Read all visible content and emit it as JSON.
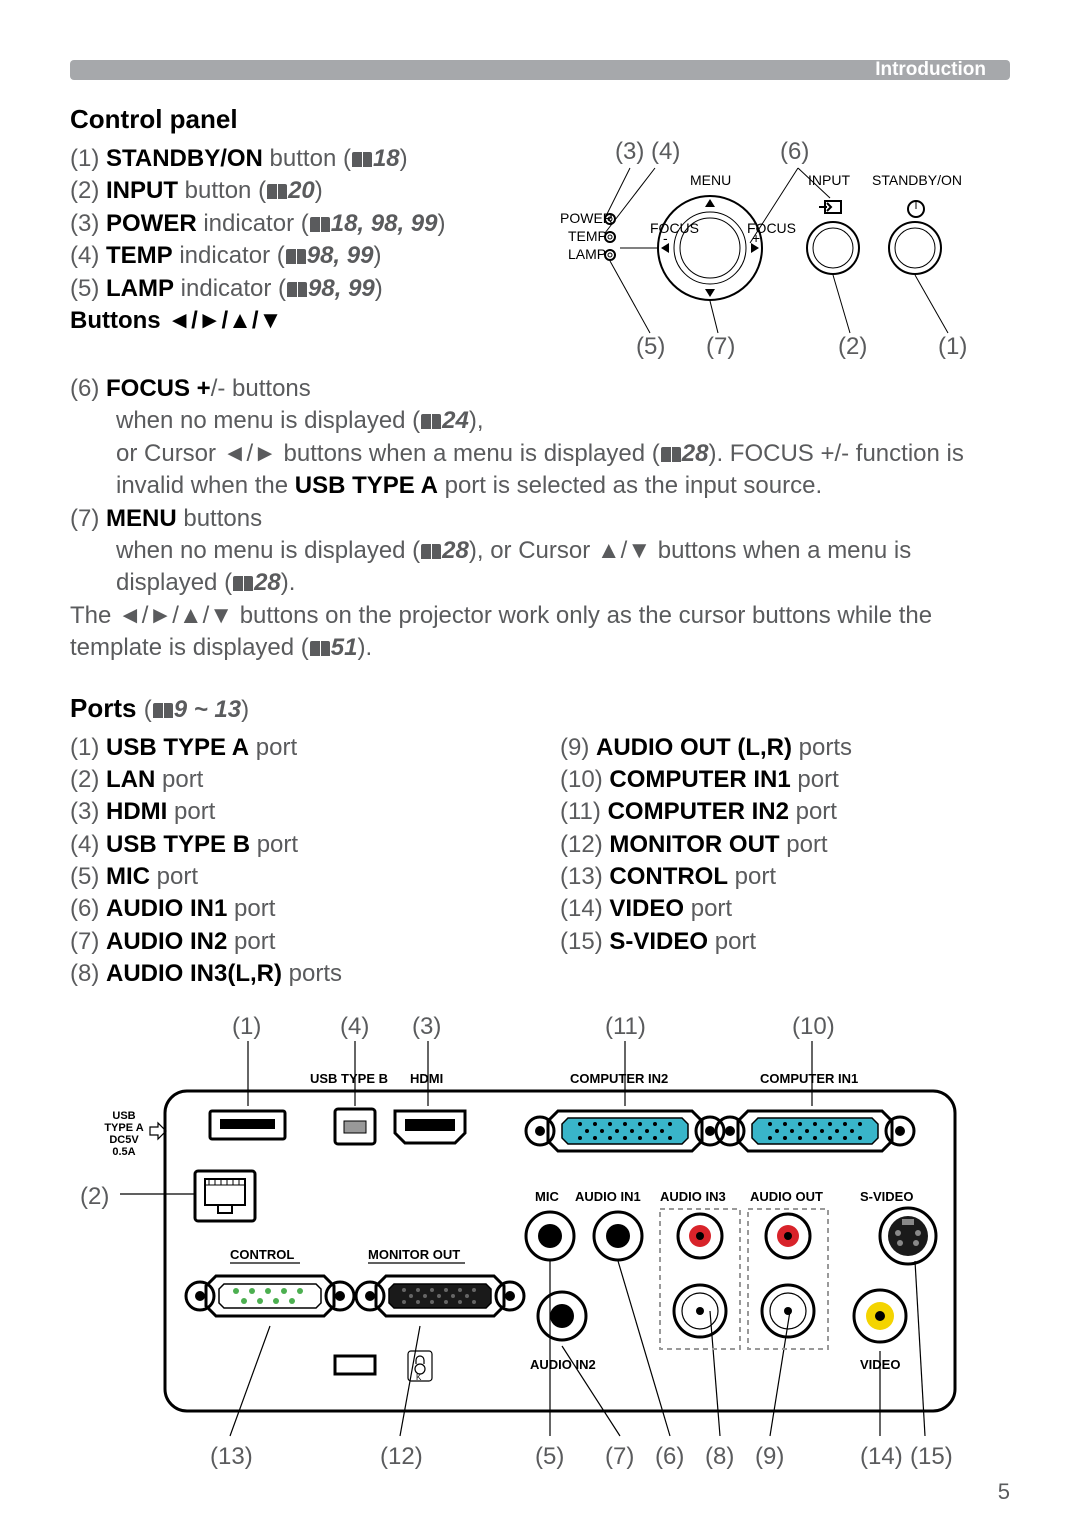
{
  "header": {
    "label": "Introduction"
  },
  "page_number": "5",
  "control_panel": {
    "title": "Control panel",
    "items": [
      {
        "num": "(1)",
        "bold": "STANDBY/ON",
        "rest": " button (",
        "ref": "18",
        "after": ")"
      },
      {
        "num": "(2)",
        "bold": "INPUT",
        "rest": " button (",
        "ref": "20",
        "after": ")"
      },
      {
        "num": "(3)",
        "bold": "POWER",
        "rest": " indicator (",
        "ref": "18, 98, 99",
        "after": ")"
      },
      {
        "num": "(4)",
        "bold": "TEMP",
        "rest": " indicator (",
        "ref": "98, 99",
        "after": ")"
      },
      {
        "num": "(5)",
        "bold": "LAMP",
        "rest": " indicator (",
        "ref": "98, 99",
        "after": ")"
      }
    ],
    "buttons_heading": "Buttons ◄/►/▲/▼",
    "focus": {
      "num": "(6)",
      "bold": "FOCUS +",
      "slash_minus": "/-",
      "rest": " buttons",
      "line2a": "when no menu is displayed (",
      "ref1": "24",
      "line2b": "),",
      "line3a": "or Cursor ◄/► buttons when a menu is displayed (",
      "ref2": "28",
      "line3b": "). FOCUS +/- function is invalid when the ",
      "bold2": "USB TYPE A",
      "line3c": " port is selected as the input source."
    },
    "menu": {
      "num": "(7)",
      "bold": "MENU",
      "rest": " buttons",
      "line2a": "when no menu is displayed (",
      "ref1": "28",
      "line2b": "), or Cursor ▲/▼ buttons when a menu is displayed (",
      "ref2": "28",
      "line2c": ")."
    },
    "footer": {
      "a": "The ◄/►/▲/▼ buttons on the projector work only as the cursor buttons while the template is displayed (",
      "ref": "51",
      "b": ")."
    },
    "diagram": {
      "top_callouts": {
        "c3": "(3)",
        "c4": "(4)",
        "c6": "(6)"
      },
      "bottom_callouts": {
        "c5": "(5)",
        "c7": "(7)",
        "c2": "(2)",
        "c1": "(1)"
      },
      "labels": {
        "menu": "MENU",
        "input": "INPUT",
        "standby": "STANDBY/ON",
        "power": "POWER",
        "temp": "TEMP",
        "lamp": "LAMP",
        "focus_minus": "FOCUS\n-",
        "focus_plus": "FOCUS\n+"
      }
    }
  },
  "ports": {
    "title_a": "Ports",
    "title_b": "(",
    "title_ref": "9 ~ 13",
    "title_c": ")",
    "left": [
      {
        "num": "(1)",
        "bold": "USB TYPE A",
        "rest": " port"
      },
      {
        "num": "(2)",
        "bold": "LAN",
        "rest": "  port"
      },
      {
        "num": "(3)",
        "bold": "HDMI",
        "rest": " port"
      },
      {
        "num": "(4)",
        "bold": "USB TYPE B",
        "rest": " port"
      },
      {
        "num": "(5)",
        "bold": "MIC",
        "rest": " port"
      },
      {
        "num": "(6)",
        "bold": "AUDIO IN1",
        "rest": " port"
      },
      {
        "num": "(7)",
        "bold": "AUDIO IN2",
        "rest": " port"
      },
      {
        "num": "(8)",
        "bold": "AUDIO IN3(L,R)",
        "rest": "  ports"
      }
    ],
    "right": [
      {
        "num": "(9)",
        "bold": "AUDIO OUT (L,R)",
        "rest": " ports"
      },
      {
        "num": "(10)",
        "bold": "COMPUTER IN1",
        "rest": " port"
      },
      {
        "num": "(11)",
        "bold": "COMPUTER IN2",
        "rest": " port"
      },
      {
        "num": "(12)",
        "bold": "MONITOR OUT",
        "rest": " port"
      },
      {
        "num": "(13)",
        "bold": "CONTROL",
        "rest": " port"
      },
      {
        "num": "(14)",
        "bold": "VIDEO",
        "rest": " port"
      },
      {
        "num": "(15)",
        "bold": "S-VIDEO",
        "rest": " port"
      }
    ],
    "diagram": {
      "top": {
        "c1": "(1)",
        "c4": "(4)",
        "c3": "(3)",
        "c11": "(11)",
        "c10": "(10)"
      },
      "left": {
        "c2": "(2)"
      },
      "bottom": {
        "c13": "(13)",
        "c12": "(12)",
        "c5": "(5)",
        "c7": "(7)",
        "c6": "(6)",
        "c8": "(8)",
        "c9": "(9)",
        "c14": "(14)",
        "c15": "(15)"
      },
      "labels": {
        "usb_a_title": "USB",
        "usb_a_sub1": "TYPE A",
        "usb_a_sub2": "DC5V",
        "usb_a_sub3": "0.5A",
        "usb_b": "USB TYPE B",
        "hdmi": "HDMI",
        "comp2": "COMPUTER IN2",
        "comp1": "COMPUTER IN1",
        "control": "CONTROL",
        "monitor": "MONITOR OUT",
        "mic": "MIC",
        "ain1": "AUDIO IN1",
        "ain3": "AUDIO IN3",
        "aout": "AUDIO OUT",
        "svideo": "S-VIDEO",
        "ain2": "AUDIO IN2",
        "video": "VIDEO"
      }
    }
  }
}
